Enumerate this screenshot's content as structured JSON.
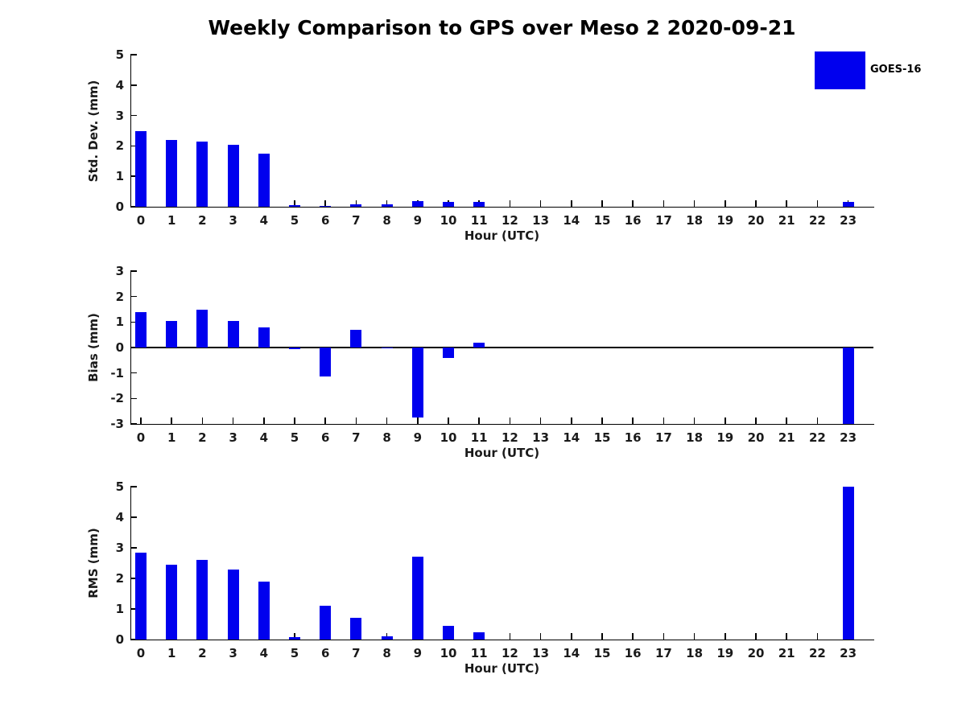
{
  "title": "Weekly Comparison to GPS over Meso 2 2020-09-21",
  "legend": {
    "label": "GOES-16",
    "swatch_color": "#0000EE",
    "position": "top-right-outside"
  },
  "colors": {
    "bar": "#0000EE",
    "axis": "#000000",
    "text": "#1a1a1a",
    "background": "#ffffff"
  },
  "chart_data": [
    {
      "type": "bar",
      "panel": "std-dev",
      "ylabel": "Std. Dev. (mm)",
      "xlabel": "Hour (UTC)",
      "series_name": "GOES-16",
      "categories": [
        0,
        1,
        2,
        3,
        4,
        5,
        6,
        7,
        8,
        9,
        10,
        11,
        12,
        13,
        14,
        15,
        16,
        17,
        18,
        19,
        20,
        21,
        22,
        23
      ],
      "values": [
        2.5,
        2.2,
        2.15,
        2.05,
        1.75,
        0.05,
        0.03,
        0.08,
        0.08,
        0.18,
        0.17,
        0.16,
        0,
        0,
        0,
        0,
        0,
        0,
        0,
        0,
        0,
        0,
        0,
        0.15
      ],
      "ylim": [
        0,
        5
      ],
      "yticks": [
        0,
        1,
        2,
        3,
        4,
        5
      ],
      "grid": false
    },
    {
      "type": "bar",
      "panel": "bias",
      "ylabel": "Bias (mm)",
      "xlabel": "Hour (UTC)",
      "series_name": "GOES-16",
      "categories": [
        0,
        1,
        2,
        3,
        4,
        5,
        6,
        7,
        8,
        9,
        10,
        11,
        12,
        13,
        14,
        15,
        16,
        17,
        18,
        19,
        20,
        21,
        22,
        23
      ],
      "values": [
        1.4,
        1.05,
        1.5,
        1.05,
        0.8,
        -0.05,
        -1.15,
        0.7,
        -0.03,
        -2.75,
        -0.4,
        0.2,
        0,
        0,
        0,
        0,
        0,
        0,
        0,
        0,
        0,
        0,
        0,
        -3.0
      ],
      "ylim": [
        -3,
        3
      ],
      "yticks": [
        -3,
        -2,
        -1,
        0,
        1,
        2,
        3
      ],
      "zero_line": true,
      "grid": false
    },
    {
      "type": "bar",
      "panel": "rms",
      "ylabel": "RMS (mm)",
      "xlabel": "Hour (UTC)",
      "series_name": "GOES-16",
      "categories": [
        0,
        1,
        2,
        3,
        4,
        5,
        6,
        7,
        8,
        9,
        10,
        11,
        12,
        13,
        14,
        15,
        16,
        17,
        18,
        19,
        20,
        21,
        22,
        23
      ],
      "values": [
        2.85,
        2.45,
        2.6,
        2.3,
        1.9,
        0.07,
        1.1,
        0.7,
        0.1,
        2.7,
        0.45,
        0.25,
        0,
        0,
        0,
        0,
        0,
        0,
        0,
        0,
        0,
        0,
        0,
        5.0
      ],
      "ylim": [
        0,
        5
      ],
      "yticks": [
        0,
        1,
        2,
        3,
        4,
        5
      ],
      "grid": false
    }
  ]
}
